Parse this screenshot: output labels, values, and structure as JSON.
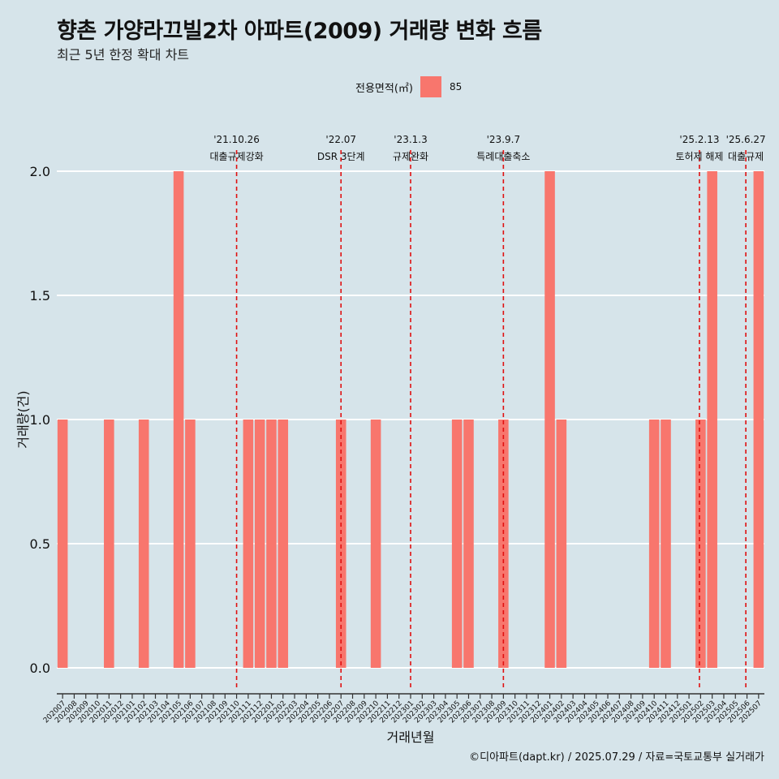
{
  "chart_data": {
    "type": "bar",
    "title": "향촌 가양라끄빌2차 아파트(2009) 거래량 변화 흐름",
    "subtitle": "최근 5년 한정 확대 차트",
    "xlabel": "거래년월",
    "ylabel": "거래량(건)",
    "ylim": [
      -0.04,
      2.14
    ],
    "yticks": [
      0.0,
      0.5,
      1.0,
      1.5,
      2.0
    ],
    "ytick_labels": [
      "0.0",
      "0.5",
      "1.0",
      "1.5",
      "2.0"
    ],
    "grid": "horizontal",
    "legend": {
      "title": "전용면적(㎡)",
      "position": "top",
      "entries": [
        "85"
      ]
    },
    "bar_color": "#f8766d",
    "line_color": "#e01010",
    "categories": [
      "202007",
      "202008",
      "202009",
      "202010",
      "202011",
      "202012",
      "202101",
      "202102",
      "202103",
      "202104",
      "202105",
      "202106",
      "202107",
      "202108",
      "202109",
      "202110",
      "202111",
      "202112",
      "202201",
      "202202",
      "202203",
      "202204",
      "202205",
      "202206",
      "202207",
      "202208",
      "202209",
      "202210",
      "202211",
      "202212",
      "202301",
      "202302",
      "202303",
      "202304",
      "202305",
      "202306",
      "202307",
      "202308",
      "202309",
      "202310",
      "202311",
      "202312",
      "202401",
      "202402",
      "202403",
      "202404",
      "202405",
      "202406",
      "202407",
      "202408",
      "202409",
      "202410",
      "202411",
      "202412",
      "202501",
      "202502",
      "202503",
      "202504",
      "202505",
      "202506",
      "202507"
    ],
    "series": [
      {
        "name": "85",
        "values": [
          1,
          0,
          0,
          0,
          1,
          0,
          0,
          1,
          0,
          0,
          2,
          1,
          0,
          0,
          0,
          0,
          1,
          1,
          1,
          1,
          0,
          0,
          0,
          0,
          1,
          0,
          0,
          1,
          0,
          0,
          0,
          0,
          0,
          0,
          1,
          1,
          0,
          0,
          1,
          0,
          0,
          0,
          2,
          1,
          0,
          0,
          0,
          0,
          0,
          0,
          0,
          1,
          1,
          0,
          0,
          1,
          2,
          0,
          0,
          0,
          2
        ]
      }
    ],
    "annotations": [
      {
        "x": 15.5,
        "date": "'21.10.26",
        "label": "대출규제강화"
      },
      {
        "x": 24.5,
        "date": "'22.07",
        "label": "DSR 3단계"
      },
      {
        "x": 30.5,
        "date": "'23.1.3",
        "label": "규제완화"
      },
      {
        "x": 38.5,
        "date": "'23.9.7",
        "label": "특례대출축소"
      },
      {
        "x": 55.4,
        "date": "'25.2.13",
        "label": "토허제 해제"
      },
      {
        "x": 59.4,
        "date": "'25.6.27",
        "label": "대출규제"
      }
    ]
  },
  "caption": "©디아파트(dapt.kr) / 2025.07.29 / 자료=국토교통부 실거래가"
}
